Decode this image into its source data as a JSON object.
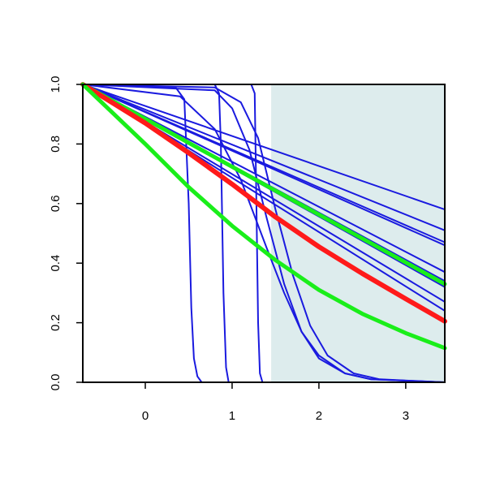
{
  "chart_data": {
    "type": "line",
    "title": "",
    "xlabel": "",
    "ylabel": "",
    "xlim": [
      -0.72,
      3.45
    ],
    "ylim": [
      0.0,
      1.0
    ],
    "x_ticks": [
      0,
      1,
      2,
      3
    ],
    "x_tick_labels": [
      "0",
      "1",
      "2",
      "3"
    ],
    "y_ticks": [
      0.0,
      0.2,
      0.4,
      0.6,
      0.8,
      1.0
    ],
    "y_tick_labels": [
      "0.0",
      "0.2",
      "0.4",
      "0.6",
      "0.8",
      "1.0"
    ],
    "grid": false,
    "legend": "none",
    "shaded_region": {
      "x_start": 1.45,
      "x_end": 3.45,
      "color": "#ddeced"
    },
    "colors": {
      "blue": "#1a1adf",
      "red": "#ff1a1a",
      "green": "#1aee1a",
      "axis": "#000000"
    },
    "series": [
      {
        "color": "blue",
        "x": [
          -0.72,
          0.35,
          0.45,
          0.5,
          0.53,
          0.56,
          0.6,
          0.65,
          3.45
        ],
        "y": [
          1.0,
          0.99,
          0.95,
          0.6,
          0.25,
          0.08,
          0.02,
          0.0,
          0.0
        ]
      },
      {
        "color": "blue",
        "x": [
          -0.72,
          0.8,
          0.85,
          0.87,
          0.9,
          0.93,
          0.96,
          3.45
        ],
        "y": [
          1.0,
          1.0,
          0.97,
          0.8,
          0.3,
          0.05,
          0.0,
          0.0
        ]
      },
      {
        "color": "blue",
        "x": [
          -0.72,
          1.22,
          1.26,
          1.28,
          1.3,
          1.32,
          1.35,
          3.45
        ],
        "y": [
          1.0,
          1.0,
          0.97,
          0.6,
          0.2,
          0.03,
          0.0,
          0.0
        ]
      },
      {
        "color": "blue",
        "x": [
          -0.72,
          0.8,
          1.0,
          1.2,
          1.4,
          1.6,
          1.8,
          2.0,
          2.3,
          2.6,
          3.45
        ],
        "y": [
          1.0,
          0.98,
          0.92,
          0.78,
          0.55,
          0.33,
          0.17,
          0.08,
          0.03,
          0.01,
          0.0
        ]
      },
      {
        "color": "blue",
        "x": [
          -0.72,
          0.4,
          0.8,
          1.1,
          1.4,
          1.6,
          1.8,
          2.0,
          2.3,
          2.6,
          3.45
        ],
        "y": [
          1.0,
          0.96,
          0.85,
          0.68,
          0.45,
          0.3,
          0.17,
          0.09,
          0.03,
          0.01,
          0.0
        ]
      },
      {
        "color": "blue",
        "x": [
          -0.72,
          0.8,
          1.1,
          1.3,
          1.5,
          1.7,
          1.9,
          2.1,
          2.4,
          2.7,
          3.45
        ],
        "y": [
          1.0,
          0.99,
          0.94,
          0.82,
          0.58,
          0.36,
          0.19,
          0.09,
          0.03,
          0.01,
          0.0
        ]
      },
      {
        "color": "blue",
        "x": [
          -0.72,
          3.45
        ],
        "y": [
          1.0,
          0.58
        ]
      },
      {
        "color": "blue",
        "x": [
          -0.72,
          3.45
        ],
        "y": [
          1.0,
          0.51
        ]
      },
      {
        "color": "blue",
        "x": [
          -0.72,
          3.45
        ],
        "y": [
          1.0,
          0.47
        ]
      },
      {
        "color": "blue",
        "x": [
          -0.72,
          3.45
        ],
        "y": [
          1.0,
          0.46
        ]
      },
      {
        "color": "blue",
        "x": [
          -0.72,
          3.45
        ],
        "y": [
          1.0,
          0.37
        ]
      },
      {
        "color": "blue",
        "x": [
          -0.72,
          3.45
        ],
        "y": [
          1.0,
          0.34
        ]
      },
      {
        "color": "blue",
        "x": [
          -0.72,
          3.45
        ],
        "y": [
          1.0,
          0.32
        ]
      },
      {
        "color": "blue",
        "x": [
          -0.72,
          3.45
        ],
        "y": [
          1.0,
          0.27
        ]
      },
      {
        "color": "blue",
        "x": [
          -0.72,
          3.45
        ],
        "y": [
          1.0,
          0.24
        ]
      },
      {
        "color": "green",
        "x": [
          -0.72,
          3.45
        ],
        "y": [
          1.0,
          0.33
        ]
      },
      {
        "color": "red",
        "x": [
          -0.72,
          0.0,
          0.5,
          1.0,
          1.5,
          2.0,
          2.5,
          3.0,
          3.45
        ],
        "y": [
          1.0,
          0.87,
          0.77,
          0.665,
          0.555,
          0.455,
          0.365,
          0.28,
          0.205
        ]
      },
      {
        "color": "green",
        "x": [
          -0.72,
          0.0,
          0.5,
          1.0,
          1.5,
          2.0,
          2.5,
          3.0,
          3.45
        ],
        "y": [
          1.0,
          0.8,
          0.655,
          0.525,
          0.41,
          0.31,
          0.23,
          0.165,
          0.115
        ]
      }
    ]
  }
}
